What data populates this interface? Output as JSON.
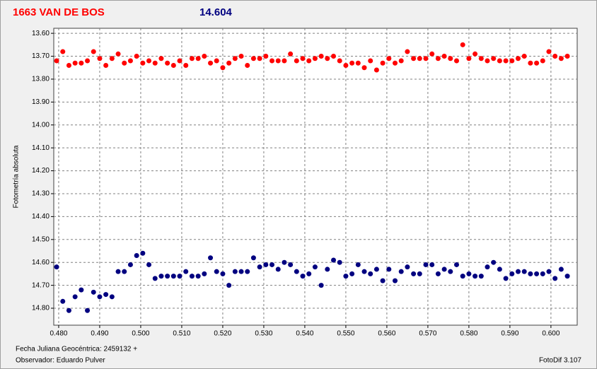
{
  "chart_data": {
    "type": "scatter",
    "title": "1663 VAN DE BOS",
    "subtitle": "14.604",
    "y_label": "Fotometría absoluta",
    "x_label": "Fecha Juliana Geocéntrica: 2459132 +",
    "observer": "Observador: Eduardo Pulver",
    "software": "FotoDif 3.107",
    "grid": true,
    "xlim": [
      0.4788,
      0.6064
    ],
    "ylim": [
      14.874,
      13.578
    ],
    "xticks": [
      {
        "value": 0.48,
        "label": "0.480"
      },
      {
        "value": 0.49,
        "label": "0.490"
      },
      {
        "value": 0.5,
        "label": "0.500"
      },
      {
        "value": 0.51,
        "label": "0.510"
      },
      {
        "value": 0.52,
        "label": "0.520"
      },
      {
        "value": 0.53,
        "label": "0.530"
      },
      {
        "value": 0.54,
        "label": "0.540"
      },
      {
        "value": 0.55,
        "label": "0.550"
      },
      {
        "value": 0.56,
        "label": "0.560"
      },
      {
        "value": 0.57,
        "label": "0.570"
      },
      {
        "value": 0.58,
        "label": "0.580"
      },
      {
        "value": 0.59,
        "label": "0.590"
      },
      {
        "value": 0.6,
        "label": "0.600"
      }
    ],
    "yticks": [
      {
        "value": 13.6,
        "label": "13.60"
      },
      {
        "value": 13.7,
        "label": "13.70"
      },
      {
        "value": 13.8,
        "label": "13.80"
      },
      {
        "value": 13.9,
        "label": "13.90"
      },
      {
        "value": 14,
        "label": "14.00"
      },
      {
        "value": 14.1,
        "label": "14.10"
      },
      {
        "value": 14.2,
        "label": "14.20"
      },
      {
        "value": 14.3,
        "label": "14.30"
      },
      {
        "value": 14.4,
        "label": "14.40"
      },
      {
        "value": 14.5,
        "label": "14.50"
      },
      {
        "value": 14.6,
        "label": "14.60"
      },
      {
        "value": 14.7,
        "label": "14.70"
      },
      {
        "value": 14.8,
        "label": "14.80"
      }
    ],
    "x": [
      0.4795,
      0.481,
      0.4825,
      0.484,
      0.4855,
      0.487,
      0.4885,
      0.49,
      0.4915,
      0.493,
      0.4945,
      0.496,
      0.4975,
      0.499,
      0.5005,
      0.502,
      0.5035,
      0.505,
      0.5065,
      0.508,
      0.5095,
      0.511,
      0.5125,
      0.514,
      0.5155,
      0.517,
      0.5185,
      0.52,
      0.5215,
      0.523,
      0.5245,
      0.526,
      0.5275,
      0.529,
      0.5305,
      0.532,
      0.5335,
      0.535,
      0.5365,
      0.538,
      0.5395,
      0.541,
      0.5425,
      0.544,
      0.5455,
      0.547,
      0.5485,
      0.55,
      0.5515,
      0.553,
      0.5545,
      0.556,
      0.5575,
      0.559,
      0.5605,
      0.562,
      0.5635,
      0.565,
      0.5665,
      0.568,
      0.5695,
      0.571,
      0.5725,
      0.574,
      0.5755,
      0.577,
      0.5785,
      0.58,
      0.5815,
      0.583,
      0.5845,
      0.586,
      0.5875,
      0.589,
      0.5905,
      0.592,
      0.5935,
      0.595,
      0.5965,
      0.598,
      0.5995,
      0.601,
      0.6025,
      0.604
    ],
    "series": [
      {
        "color": "#ff0000",
        "values": [
          13.72,
          13.68,
          13.74,
          13.73,
          13.73,
          13.72,
          13.68,
          13.71,
          13.74,
          13.71,
          13.69,
          13.73,
          13.72,
          13.7,
          13.73,
          13.72,
          13.73,
          13.71,
          13.73,
          13.74,
          13.72,
          13.74,
          13.71,
          13.71,
          13.7,
          13.73,
          13.72,
          13.75,
          13.73,
          13.71,
          13.7,
          13.74,
          13.71,
          13.71,
          13.7,
          13.72,
          13.72,
          13.72,
          13.69,
          13.72,
          13.71,
          13.72,
          13.71,
          13.7,
          13.71,
          13.7,
          13.72,
          13.74,
          13.73,
          13.73,
          13.75,
          13.72,
          13.76,
          13.73,
          13.71,
          13.73,
          13.72,
          13.68,
          13.71,
          13.71,
          13.71,
          13.69,
          13.71,
          13.7,
          13.71,
          13.72,
          13.65,
          13.71,
          13.69,
          13.71,
          13.72,
          13.71,
          13.72,
          13.72,
          13.72,
          13.71,
          13.7,
          13.73,
          13.73,
          13.72,
          13.68,
          13.7,
          13.71,
          13.7
        ]
      },
      {
        "color": "#000080",
        "values": [
          14.62,
          14.77,
          14.81,
          14.75,
          14.72,
          14.81,
          14.73,
          14.75,
          14.74,
          14.75,
          14.64,
          14.64,
          14.61,
          14.57,
          14.56,
          14.61,
          14.67,
          14.66,
          14.66,
          14.66,
          14.66,
          14.64,
          14.66,
          14.66,
          14.65,
          14.58,
          14.64,
          14.65,
          14.7,
          14.64,
          14.64,
          14.64,
          14.58,
          14.62,
          14.61,
          14.61,
          14.63,
          14.6,
          14.61,
          14.64,
          14.66,
          14.65,
          14.62,
          14.7,
          14.63,
          14.59,
          14.6,
          14.66,
          14.65,
          14.61,
          14.64,
          14.65,
          14.63,
          14.68,
          14.63,
          14.68,
          14.64,
          14.62,
          14.65,
          14.65,
          14.61,
          14.61,
          14.65,
          14.63,
          14.64,
          14.61,
          14.66,
          14.65,
          14.66,
          14.66,
          14.62,
          14.6,
          14.63,
          14.67,
          14.65,
          14.64,
          14.64,
          14.65,
          14.65,
          14.65,
          14.64,
          14.67,
          14.63,
          14.66
        ]
      }
    ]
  }
}
